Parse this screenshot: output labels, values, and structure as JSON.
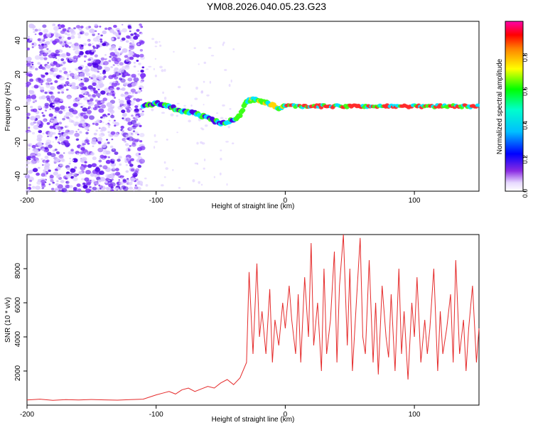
{
  "figure_title": "YM08.2026.040.05.23.G23",
  "colors": {
    "spectrogram_background": "#ffffff",
    "line_color": "#e52a2a",
    "weak_points": "#d9c7ff",
    "mid_points": "#7b2ff7",
    "strong_points": "#4b00e6",
    "cyan": "#00e5ff",
    "green": "#39ff14",
    "yellow": "#ffd500",
    "red": "#ff2a2a"
  },
  "chart_data": [
    {
      "type": "heatmap",
      "title": "",
      "xlabel": "Height of straight line (km)",
      "ylabel": "Frequency (Hz)",
      "xlim": [
        -200,
        150
      ],
      "ylim": [
        -50,
        50
      ],
      "x_ticks": [
        -200,
        -100,
        0,
        100
      ],
      "x_tick_labels": [
        "-200",
        "-100",
        "0",
        "100"
      ],
      "y_ticks": [
        -40,
        -20,
        0,
        20,
        40
      ],
      "y_tick_labels": [
        "-40",
        "-20",
        "0",
        "20",
        "40"
      ],
      "colorbar": {
        "label": "Normalized spectral amplitude",
        "range": [
          0,
          1
        ],
        "ticks": [
          0.0,
          0.2,
          0.4,
          0.6,
          0.8
        ],
        "tick_labels": [
          "0.0",
          "0.2",
          "0.4",
          "0.6",
          "0.8"
        ]
      },
      "ridge": [
        {
          "x": -110,
          "freq": 0
        },
        {
          "x": -100,
          "freq": 2
        },
        {
          "x": -90,
          "freq": 0
        },
        {
          "x": -80,
          "freq": -3
        },
        {
          "x": -70,
          "freq": -4
        },
        {
          "x": -60,
          "freq": -7
        },
        {
          "x": -50,
          "freq": -10
        },
        {
          "x": -40,
          "freq": -8
        },
        {
          "x": -35,
          "freq": -5
        },
        {
          "x": -30,
          "freq": 3
        },
        {
          "x": -25,
          "freq": 4
        },
        {
          "x": -20,
          "freq": 3
        },
        {
          "x": -10,
          "freq": 1
        },
        {
          "x": -5,
          "freq": -2
        },
        {
          "x": 0,
          "freq": 0
        },
        {
          "x": 20,
          "freq": 0
        },
        {
          "x": 60,
          "freq": 0
        },
        {
          "x": 100,
          "freq": 0
        },
        {
          "x": 150,
          "freq": 0
        }
      ]
    },
    {
      "type": "line",
      "title": "",
      "xlabel": "Height of straight line (km)",
      "ylabel": "SNR (10 * v/v)",
      "xlim": [
        -200,
        150
      ],
      "ylim": [
        0,
        10000
      ],
      "x_ticks": [
        -200,
        -100,
        0,
        100
      ],
      "x_tick_labels": [
        "-200",
        "-100",
        "0",
        "100"
      ],
      "y_ticks": [
        2000,
        4000,
        6000,
        8000
      ],
      "y_tick_labels": [
        "2000",
        "4000",
        "6000",
        "8000"
      ],
      "series": [
        {
          "x": [
            -200,
            -190,
            -180,
            -170,
            -160,
            -150,
            -140,
            -130,
            -120,
            -110,
            -100,
            -95,
            -90,
            -85,
            -80,
            -75,
            -70,
            -65,
            -60,
            -55,
            -50,
            -45,
            -40,
            -35,
            -30,
            -28,
            -25,
            -22,
            -20,
            -18,
            -15,
            -12,
            -10,
            -8,
            -5,
            -2,
            0,
            3,
            5,
            8,
            10,
            12,
            15,
            18,
            20,
            22,
            25,
            28,
            30,
            32,
            35,
            38,
            40,
            42,
            45,
            48,
            50,
            52,
            55,
            58,
            60,
            62,
            65,
            68,
            70,
            72,
            75,
            78,
            80,
            82,
            85,
            88,
            90,
            92,
            95,
            98,
            100,
            102,
            105,
            108,
            110,
            112,
            115,
            118,
            120,
            122,
            125,
            128,
            130,
            132,
            135,
            138,
            140,
            142,
            145,
            148,
            150
          ],
          "values": [
            300,
            350,
            280,
            320,
            300,
            330,
            310,
            290,
            320,
            350,
            600,
            700,
            800,
            650,
            900,
            1000,
            800,
            950,
            1100,
            1000,
            1300,
            1500,
            1200,
            1600,
            2500,
            7800,
            3000,
            8300,
            4000,
            5500,
            3000,
            6800,
            2500,
            5000,
            3500,
            6000,
            4500,
            7000,
            5000,
            3000,
            6500,
            2500,
            7500,
            4000,
            9500,
            3500,
            6000,
            2000,
            8000,
            3000,
            5000,
            9000,
            2500,
            7000,
            10000,
            3500,
            8000,
            2000,
            6000,
            9800,
            4000,
            3000,
            8500,
            2500,
            6000,
            1800,
            7000,
            4000,
            2800,
            6500,
            2000,
            8000,
            3000,
            5500,
            1500,
            6000,
            4000,
            7500,
            2500,
            5000,
            3000,
            4500,
            8000,
            2000,
            5500,
            3000,
            4500,
            6500,
            2500,
            8500,
            3000,
            5000,
            2000,
            4500,
            7000,
            2500,
            4500
          ]
        }
      ]
    }
  ]
}
